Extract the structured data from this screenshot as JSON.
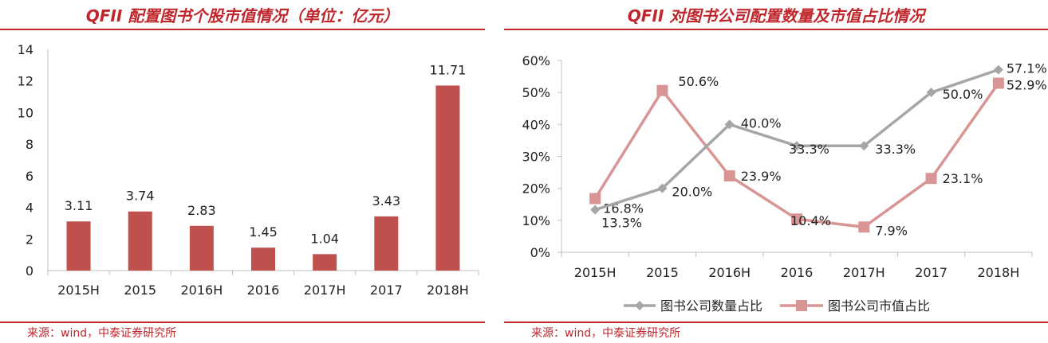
{
  "left": {
    "title": "QFII 配置图书个股市值情况（单位：亿元）",
    "source": "来源：wind，中泰证券研究所",
    "chart_data": {
      "type": "bar",
      "title": "QFII 配置图书个股市值情况（单位：亿元）",
      "categories": [
        "2015H",
        "2015",
        "2016H",
        "2016",
        "2017H",
        "2017",
        "2018H"
      ],
      "values": [
        3.11,
        3.74,
        2.83,
        1.45,
        1.04,
        3.43,
        11.71
      ],
      "value_labels": [
        "3.11",
        "3.74",
        "2.83",
        "1.45",
        "1.04",
        "3.43",
        "11.71"
      ],
      "yticks": [
        0,
        2,
        4,
        6,
        8,
        10,
        12,
        14
      ],
      "ylim": [
        0,
        14
      ],
      "grid": false,
      "legend": "none",
      "color": "#c0504d"
    }
  },
  "right": {
    "title": "QFII 对图书公司配置数量及市值占比情况",
    "source": "来源：wind，中泰证券研究所",
    "chart_data": {
      "type": "line",
      "title": "QFII 对图书公司配置数量及市值占比情况",
      "categories": [
        "2015H",
        "2015",
        "2016H",
        "2016",
        "2017H",
        "2017",
        "2018H"
      ],
      "yticks": [
        "0%",
        "10%",
        "20%",
        "30%",
        "40%",
        "50%",
        "60%"
      ],
      "ylim": [
        0,
        60
      ],
      "grid": false,
      "legend": "bottom",
      "series": [
        {
          "name": "图书公司数量占比",
          "values": [
            13.3,
            20.0,
            40.0,
            33.3,
            33.3,
            50.0,
            57.1
          ],
          "value_labels": [
            "13.3%",
            "20.0%",
            "40.0%",
            "33.3%",
            "33.3%",
            "50.0%",
            "57.1%"
          ],
          "color": "#a6a6a6",
          "marker": "diamond"
        },
        {
          "name": "图书公司市值占比",
          "values": [
            16.8,
            50.6,
            23.9,
            10.4,
            7.9,
            23.1,
            52.9
          ],
          "value_labels": [
            "16.8%",
            "50.6%",
            "23.9%",
            "10.4%",
            "7.9%",
            "23.1%",
            "52.9%"
          ],
          "color": "#d99594",
          "marker": "square"
        }
      ]
    }
  }
}
